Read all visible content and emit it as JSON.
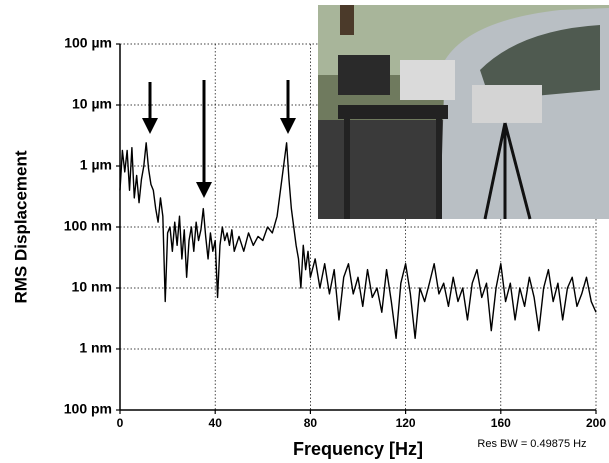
{
  "chart_data": {
    "type": "line",
    "xlabel": "Frequency [Hz]",
    "ylabel": "RMS Displacement",
    "annotation": "Res BW = 0.49875 Hz",
    "log_y": true,
    "grid": true,
    "color": "#000000",
    "xlim": [
      0,
      200
    ],
    "xticks": [
      0,
      40,
      80,
      120,
      160,
      200
    ],
    "ylim": [
      1e-10,
      0.0001
    ],
    "yticks": [
      {
        "value": 1e-10,
        "label": "100 pm"
      },
      {
        "value": 1e-09,
        "label": "1 nm"
      },
      {
        "value": 1e-08,
        "label": "10 nm"
      },
      {
        "value": 1e-07,
        "label": "100 nm"
      },
      {
        "value": 1e-06,
        "label": "1 µm"
      },
      {
        "value": 1e-05,
        "label": "10 µm"
      },
      {
        "value": 0.0001,
        "label": "100 µm"
      }
    ],
    "x": [
      0,
      1,
      2,
      3,
      4,
      5,
      6,
      7,
      8,
      9,
      10,
      11,
      12,
      13,
      14,
      15,
      16,
      17,
      18,
      19,
      20,
      21,
      22,
      23,
      24,
      25,
      26,
      27,
      28,
      29,
      30,
      31,
      32,
      33,
      34,
      35,
      36,
      37,
      38,
      39,
      40,
      41,
      42,
      43,
      44,
      45,
      46,
      47,
      48,
      50,
      52,
      54,
      56,
      58,
      60,
      62,
      64,
      66,
      67,
      68,
      69,
      70,
      71,
      72,
      73,
      74,
      75,
      76,
      77,
      78,
      79,
      80,
      82,
      84,
      86,
      88,
      90,
      92,
      94,
      96,
      98,
      100,
      102,
      104,
      106,
      108,
      110,
      112,
      114,
      116,
      118,
      120,
      122,
      124,
      126,
      128,
      130,
      132,
      134,
      136,
      138,
      140,
      142,
      144,
      146,
      148,
      150,
      152,
      154,
      156,
      158,
      160,
      162,
      164,
      166,
      168,
      170,
      172,
      174,
      176,
      178,
      180,
      182,
      184,
      186,
      188,
      190,
      192,
      194,
      196,
      198,
      200
    ],
    "values": [
      4e-07,
      1.8e-06,
      8e-07,
      1.8e-06,
      4e-07,
      2e-06,
      3e-07,
      7e-07,
      2.5e-07,
      6e-07,
      1e-06,
      2.4e-06,
      9e-07,
      5e-07,
      4e-07,
      2e-07,
      1.2e-07,
      3e-07,
      1.5e-07,
      6e-09,
      8e-08,
      1e-07,
      4e-08,
      1.2e-07,
      5e-08,
      1.5e-07,
      3e-08,
      9e-08,
      1.5e-08,
      6e-08,
      1e-07,
      4e-08,
      1.2e-07,
      6e-08,
      9e-08,
      2e-07,
      7e-08,
      3e-08,
      8e-08,
      4e-08,
      6e-08,
      7e-09,
      5e-08,
      1e-07,
      6e-08,
      8e-08,
      5e-08,
      9e-08,
      4e-08,
      7e-08,
      4e-08,
      8e-08,
      5e-08,
      7e-08,
      6e-08,
      1e-07,
      8e-08,
      1.5e-07,
      3e-07,
      6e-07,
      1.2e-06,
      2.4e-06,
      6e-07,
      2e-07,
      1e-07,
      5e-08,
      3e-08,
      1e-08,
      5e-08,
      2e-08,
      4e-08,
      1.5e-08,
      3e-08,
      1e-08,
      2.5e-08,
      8e-09,
      2e-08,
      3e-09,
      1.5e-08,
      2.5e-08,
      8e-09,
      1.5e-08,
      5e-09,
      2e-08,
      7e-09,
      1e-08,
      4e-09,
      2e-08,
      6e-09,
      1.5e-09,
      1.2e-08,
      2.5e-08,
      8e-09,
      1.5e-09,
      1e-08,
      6e-09,
      1.2e-08,
      2.5e-08,
      8e-09,
      1.2e-08,
      5e-09,
      1.5e-08,
      6e-09,
      1e-08,
      3e-09,
      1.2e-08,
      2e-08,
      7e-09,
      1.2e-08,
      2e-09,
      1e-08,
      2.5e-08,
      6e-09,
      1.2e-08,
      3e-09,
      1e-08,
      5e-09,
      1.5e-08,
      7e-09,
      2e-09,
      1e-08,
      2e-08,
      6e-09,
      1.2e-08,
      3e-09,
      1e-08,
      1.5e-08,
      5e-09,
      8e-09,
      1.5e-08,
      6e-09,
      4e-09
    ]
  }
}
